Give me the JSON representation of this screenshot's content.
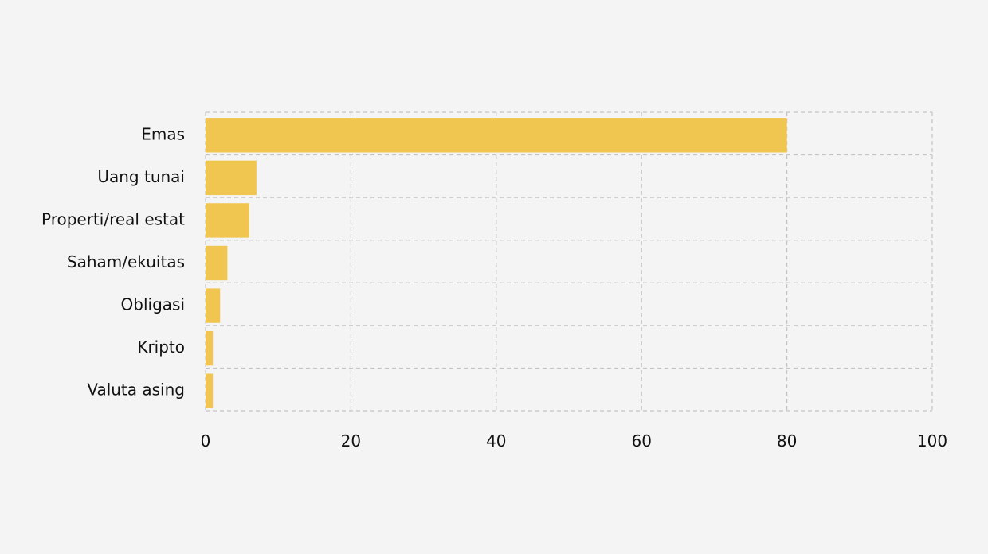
{
  "chart_data": {
    "type": "bar",
    "orientation": "horizontal",
    "categories": [
      "Emas",
      "Uang tunai",
      "Properti/real estat",
      "Saham/ekuitas",
      "Obligasi",
      "Kripto",
      "Valuta asing"
    ],
    "values": [
      80,
      7,
      6,
      3,
      2,
      1,
      1
    ],
    "title": "",
    "xlabel": "",
    "ylabel": "",
    "xlim": [
      0,
      100
    ],
    "x_ticks": [
      0,
      20,
      40,
      60,
      80,
      100
    ],
    "grid": true,
    "grid_style": "dashed",
    "legend": "none",
    "bar_color": "#f0c550",
    "background_color": "#f4f4f4",
    "grid_color": "#c4c4c4"
  }
}
